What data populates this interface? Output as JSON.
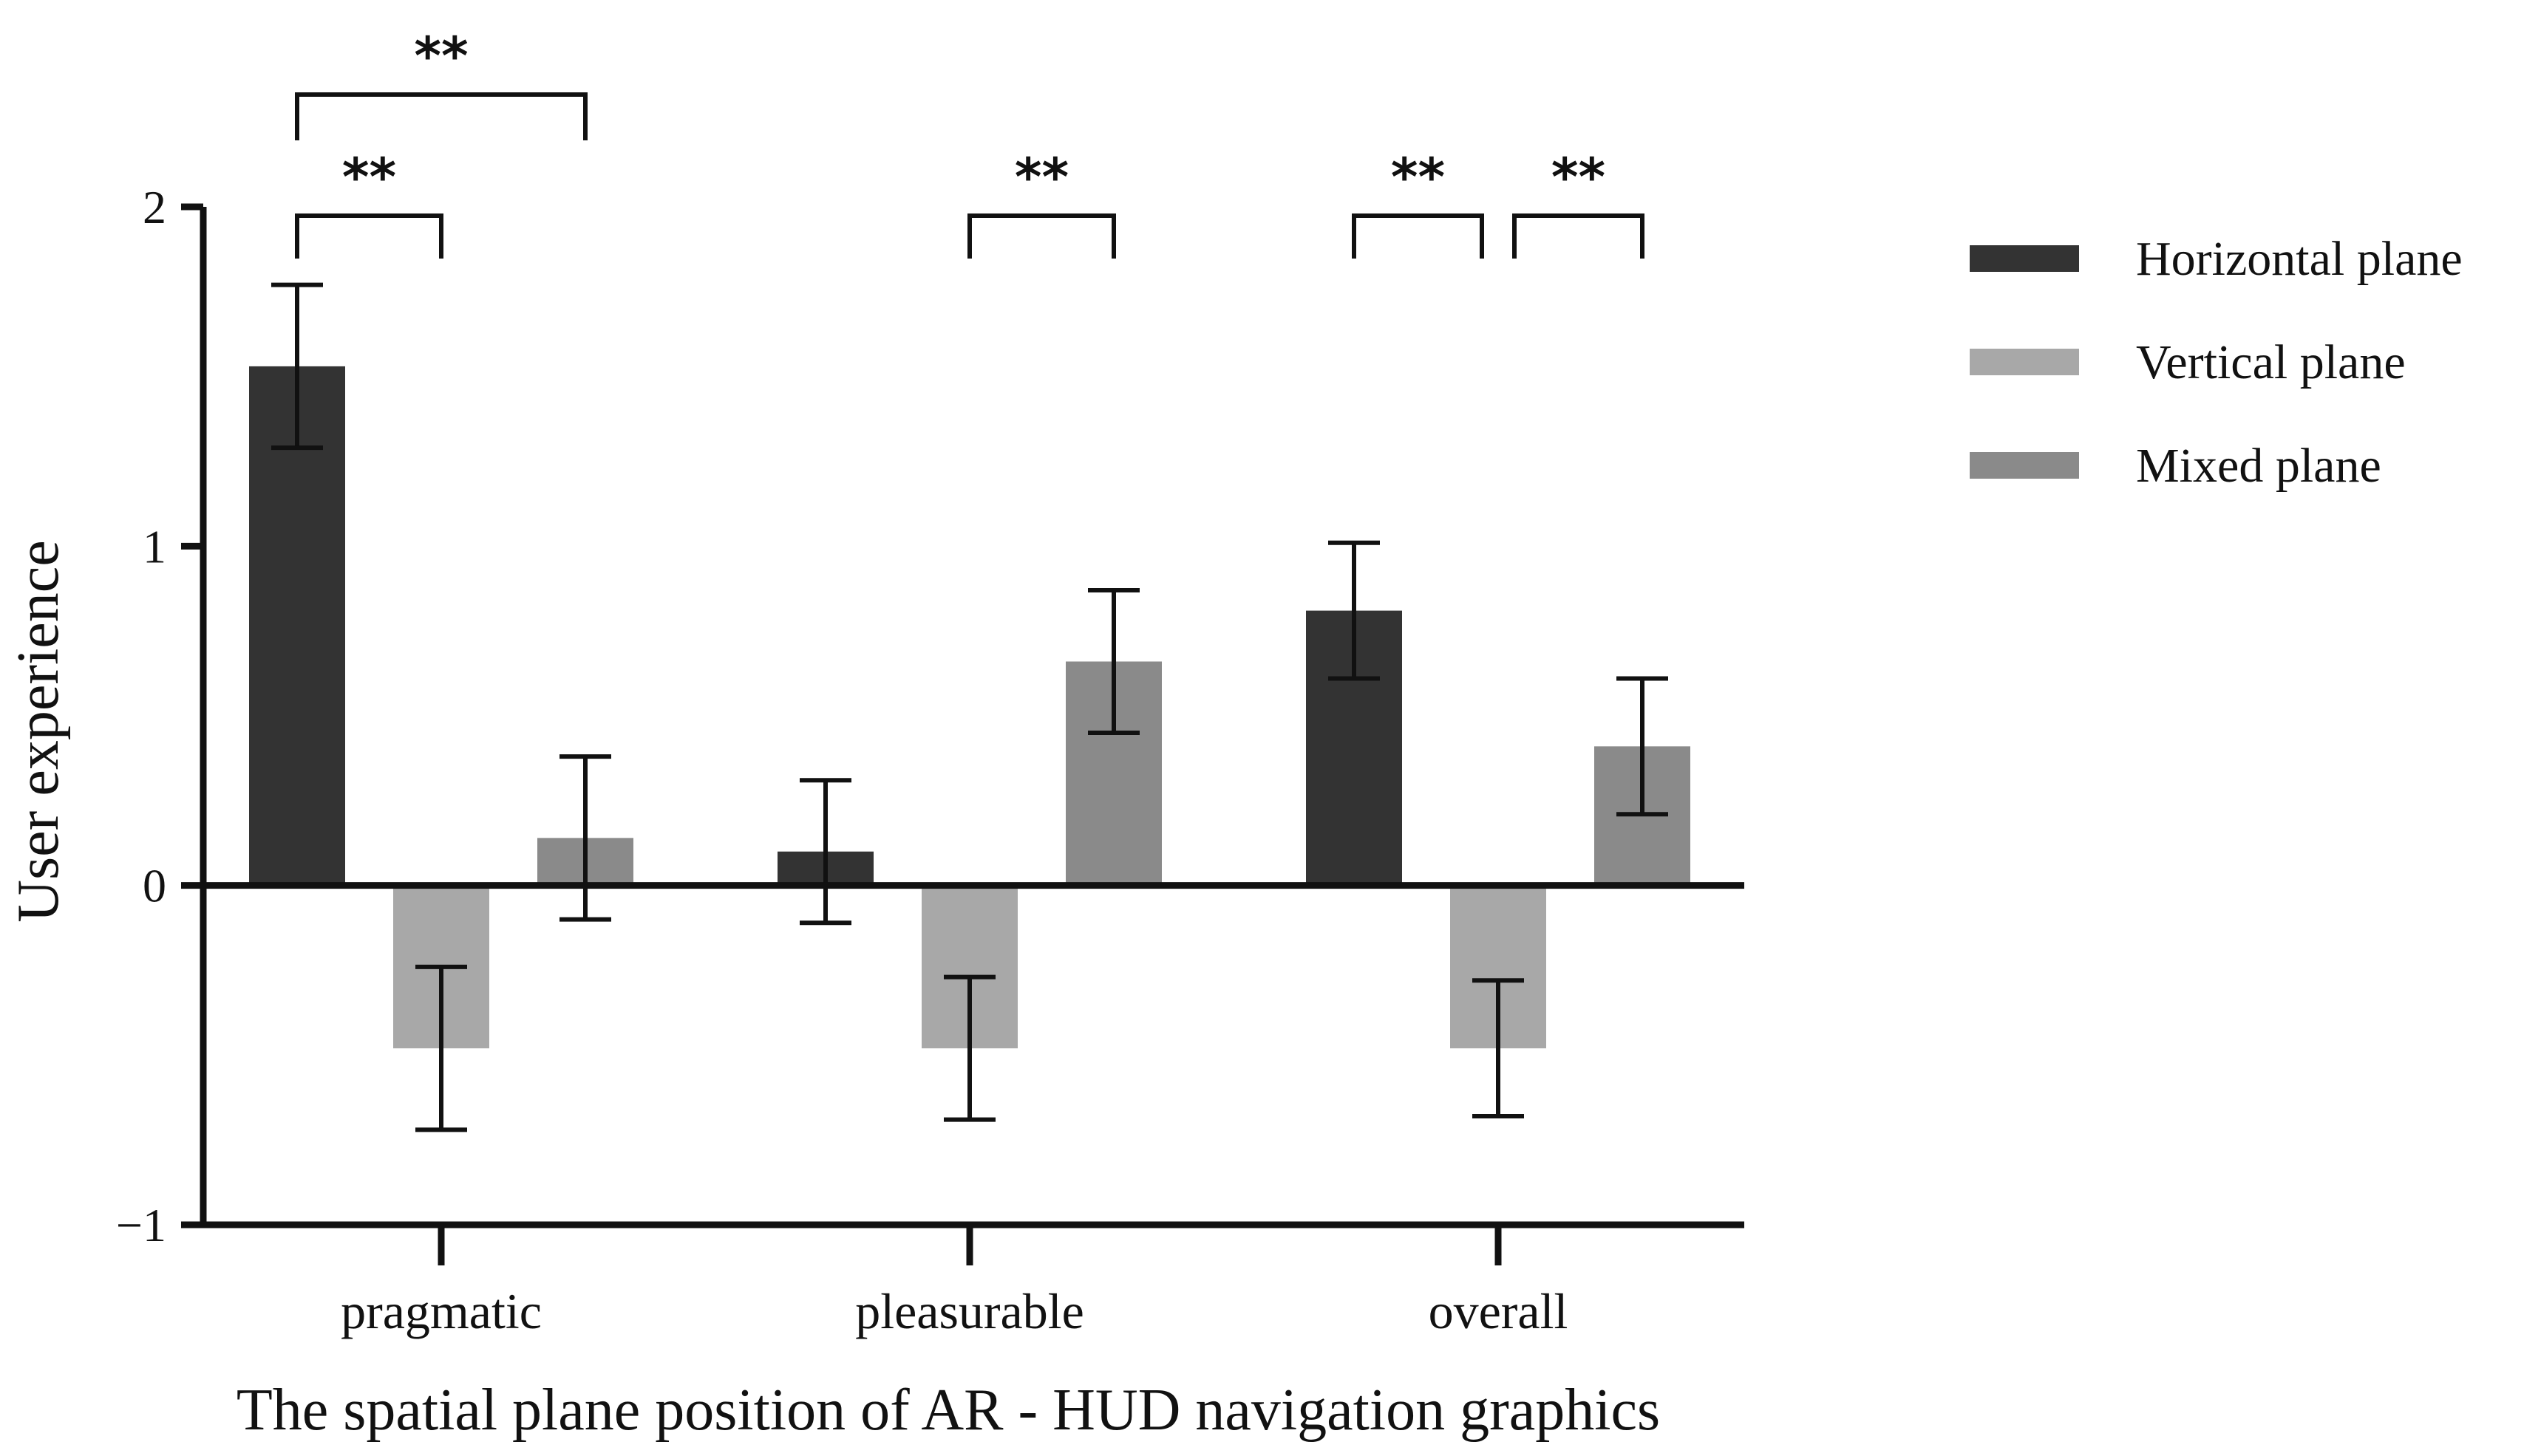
{
  "chart_data": {
    "type": "bar",
    "title": "",
    "xlabel": "The spatial plane position of AR - HUD navigation graphics",
    "ylabel": "User experience",
    "ylim": [
      -1,
      2
    ],
    "yticks": [
      2,
      1,
      0,
      -1
    ],
    "ytick_labels": [
      "2",
      "1",
      "0",
      "−1"
    ],
    "categories": [
      "pragmatic",
      "pleasurable",
      "overall"
    ],
    "series": [
      {
        "name": "Horizontal plane",
        "color": "#333333",
        "values": [
          1.53,
          0.1,
          0.81
        ],
        "errors": [
          0.24,
          0.21,
          0.2
        ]
      },
      {
        "name": "Vertical plane",
        "color": "#a8a8a8",
        "values": [
          -0.48,
          -0.48,
          -0.48
        ],
        "errors": [
          0.24,
          0.21,
          0.2
        ]
      },
      {
        "name": "Mixed plane",
        "color": "#8a8a8a",
        "values": [
          0.14,
          0.66,
          0.41
        ],
        "errors": [
          0.24,
          0.21,
          0.2
        ]
      }
    ],
    "legend_position": "top-right",
    "significance": [
      {
        "category": 0,
        "from_series": 0,
        "to_series": 2,
        "label": "**",
        "level": 2
      },
      {
        "category": 0,
        "from_series": 0,
        "to_series": 1,
        "label": "**",
        "level": 1
      },
      {
        "category": 1,
        "from_series": 1,
        "to_series": 2,
        "label": "**",
        "level": 1
      },
      {
        "category": 2,
        "from_series": 0,
        "to_series": 1,
        "label": "**",
        "level": 1
      },
      {
        "category": 2,
        "from_series": 1,
        "to_series": 2,
        "label": "**",
        "level": 1
      }
    ]
  }
}
